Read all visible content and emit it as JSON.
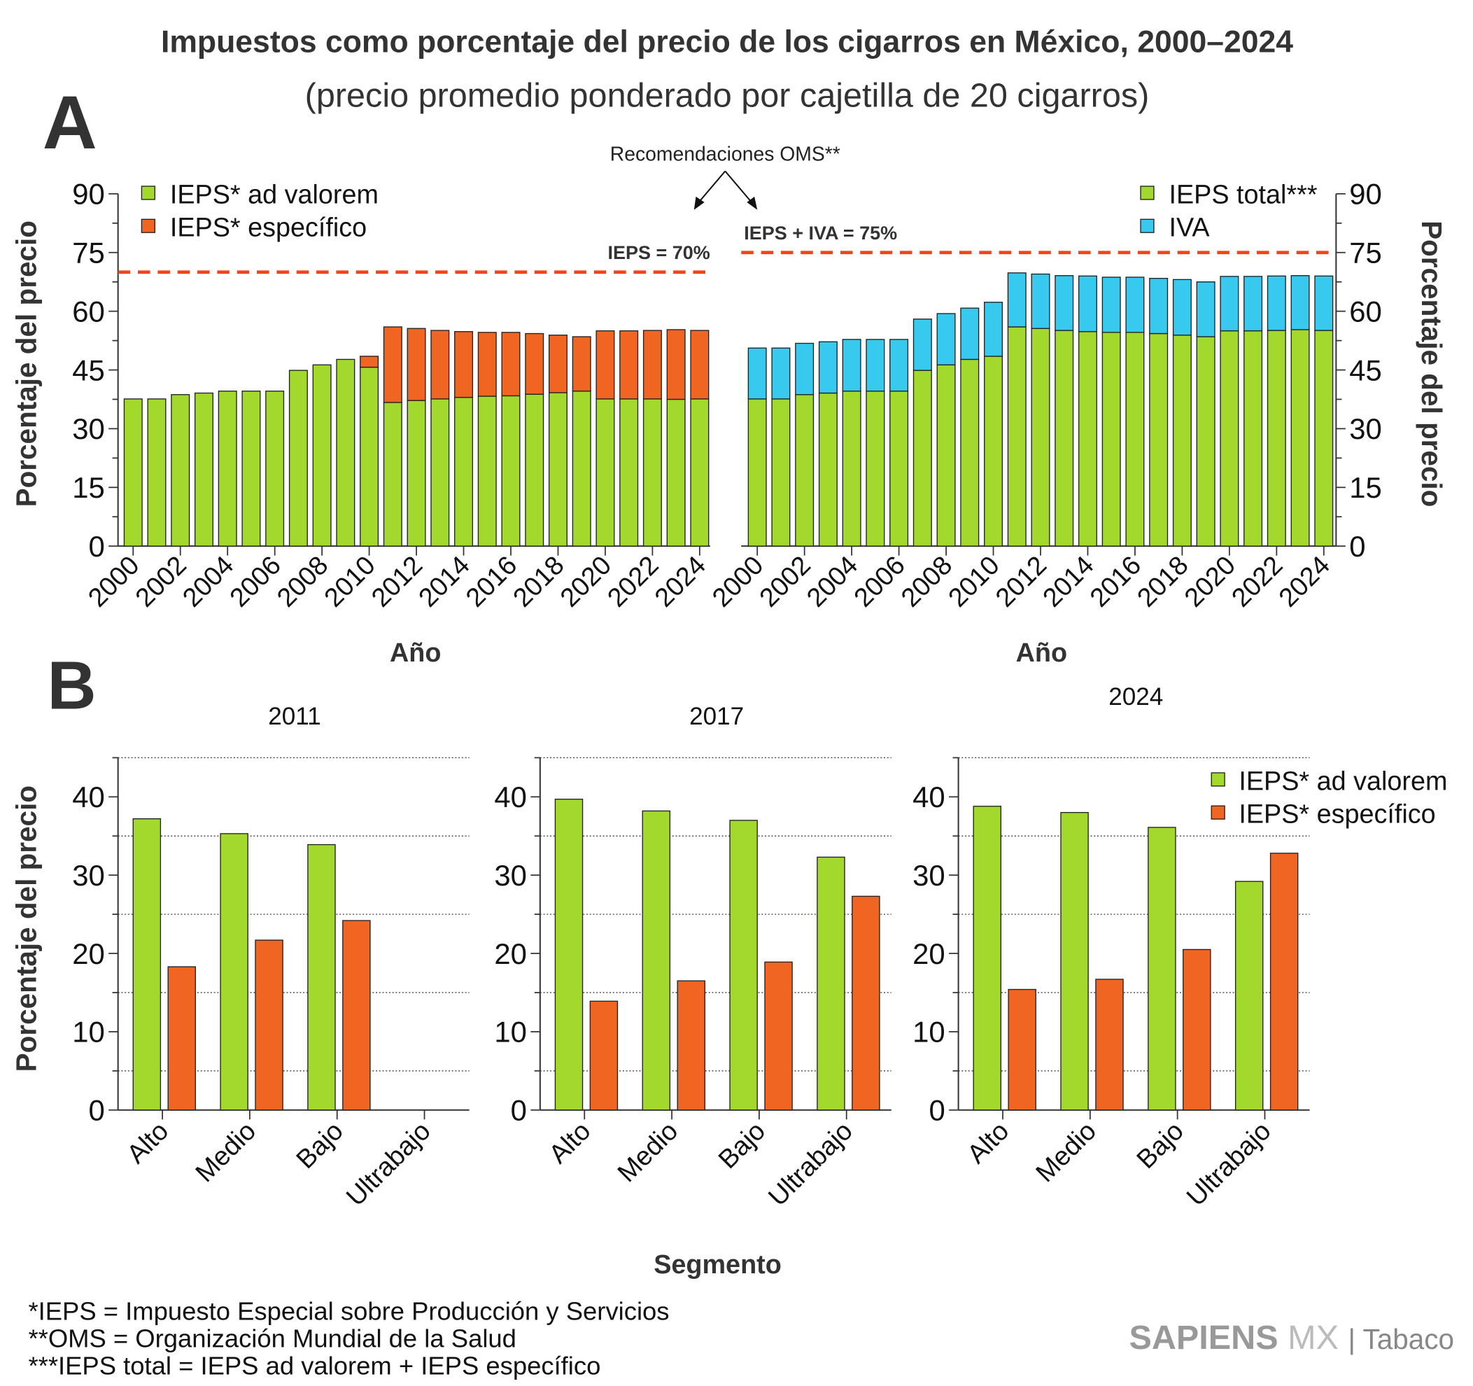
{
  "title": "Impuestos como porcentaje del precio de los cigarros en México, 2000–2024",
  "subtitle": "(precio promedio ponderado por cajetilla de 20 cigarros)",
  "panel_a_label": "A",
  "panel_b_label": "B",
  "annotation": "Recomendaciones OMS**",
  "footnotes": [
    "*IEPS = Impuesto Especial sobre Producción y Servicios",
    "**OMS = Organización Mundial de la Salud",
    "***IEPS total = IEPS ad valorem + IEPS específico"
  ],
  "logo": {
    "brand": "SAPIENS",
    "mx": "MX",
    "section": "| Tabaco"
  },
  "colors": {
    "green": "#a3d82c",
    "orange": "#f06522",
    "blue": "#38c9ef",
    "dash": "#f0441c"
  },
  "chart_data": [
    {
      "type": "bar",
      "stacked": true,
      "ylabel": "Porcentaje del precio",
      "xlabel": "Año",
      "ylim": [
        0,
        90
      ],
      "yticks": [
        0,
        15,
        30,
        45,
        60,
        75,
        90
      ],
      "reference_line": {
        "value": 70,
        "label": "IEPS = 70%"
      },
      "legend": "top-left",
      "categories": [
        2000,
        2001,
        2002,
        2003,
        2004,
        2005,
        2006,
        2007,
        2008,
        2009,
        2010,
        2011,
        2012,
        2013,
        2014,
        2015,
        2016,
        2017,
        2018,
        2019,
        2020,
        2021,
        2022,
        2023,
        2024
      ],
      "series": [
        {
          "name": "IEPS* ad valorem",
          "color": "#a3d82c",
          "values": [
            37.6,
            37.6,
            38.7,
            39.1,
            39.6,
            39.6,
            39.6,
            44.9,
            46.3,
            47.7,
            45.7,
            36.7,
            37.2,
            37.6,
            38.0,
            38.3,
            38.4,
            38.8,
            39.2,
            39.6,
            37.6,
            37.6,
            37.6,
            37.5,
            37.6
          ]
        },
        {
          "name": "IEPS* específico",
          "color": "#f06522",
          "values": [
            0,
            0,
            0,
            0,
            0,
            0,
            0,
            0,
            0,
            0,
            2.8,
            19.3,
            18.4,
            17.5,
            16.8,
            16.3,
            16.2,
            15.5,
            14.7,
            13.9,
            17.4,
            17.4,
            17.5,
            17.8,
            17.5
          ]
        }
      ]
    },
    {
      "type": "bar",
      "stacked": true,
      "ylabel": "Porcentaje del precio",
      "xlabel": "Año",
      "ylim": [
        0,
        90
      ],
      "yticks": [
        0,
        15,
        30,
        45,
        60,
        75,
        90
      ],
      "reference_line": {
        "value": 75,
        "label": "IEPS + IVA  = 75%"
      },
      "legend": "top-right",
      "categories": [
        2000,
        2001,
        2002,
        2003,
        2004,
        2005,
        2006,
        2007,
        2008,
        2009,
        2010,
        2011,
        2012,
        2013,
        2014,
        2015,
        2016,
        2017,
        2018,
        2019,
        2020,
        2021,
        2022,
        2023,
        2024
      ],
      "series": [
        {
          "name": "IEPS total***",
          "color": "#a3d82c",
          "values": [
            37.6,
            37.6,
            38.7,
            39.1,
            39.6,
            39.6,
            39.6,
            44.9,
            46.3,
            47.7,
            48.5,
            56.0,
            55.6,
            55.1,
            54.8,
            54.6,
            54.6,
            54.3,
            53.9,
            53.5,
            55.0,
            55.0,
            55.1,
            55.3,
            55.1
          ]
        },
        {
          "name": "IVA",
          "color": "#38c9ef",
          "values": [
            13.0,
            13.0,
            13.1,
            13.1,
            13.2,
            13.2,
            13.2,
            13.1,
            13.1,
            13.1,
            13.8,
            13.8,
            13.9,
            14.0,
            14.2,
            14.1,
            14.1,
            14.1,
            14.2,
            14.0,
            13.9,
            13.9,
            13.9,
            13.8,
            13.9
          ]
        }
      ]
    },
    {
      "type": "bar",
      "title": "2011",
      "ylabel": "Porcentaje del precio",
      "xlabel": "Segmento",
      "ylim": [
        0,
        45
      ],
      "yticks": [
        0,
        10,
        20,
        30,
        40
      ],
      "grid": "dotted",
      "categories": [
        "Alto",
        "Medio",
        "Bajo",
        "Ultrabajo"
      ],
      "series": [
        {
          "name": "IEPS* ad valorem",
          "color": "#a3d82c",
          "values": [
            37.2,
            35.3,
            33.9,
            0
          ]
        },
        {
          "name": "IEPS* específico",
          "color": "#f06522",
          "values": [
            18.3,
            21.7,
            24.2,
            0
          ]
        }
      ]
    },
    {
      "type": "bar",
      "title": "2017",
      "ylim": [
        0,
        45
      ],
      "yticks": [
        0,
        10,
        20,
        30,
        40
      ],
      "grid": "dotted",
      "categories": [
        "Alto",
        "Medio",
        "Bajo",
        "Ultrabajo"
      ],
      "series": [
        {
          "name": "IEPS* ad valorem",
          "color": "#a3d82c",
          "values": [
            39.7,
            38.2,
            37.0,
            32.3
          ]
        },
        {
          "name": "IEPS* específico",
          "color": "#f06522",
          "values": [
            13.9,
            16.5,
            18.9,
            27.3
          ]
        }
      ]
    },
    {
      "type": "bar",
      "title": "2024",
      "ylim": [
        0,
        45
      ],
      "yticks": [
        0,
        10,
        20,
        30,
        40
      ],
      "grid": "dotted",
      "legend": "top-right",
      "categories": [
        "Alto",
        "Medio",
        "Bajo",
        "Ultrabajo"
      ],
      "series": [
        {
          "name": "IEPS* ad valorem",
          "color": "#a3d82c",
          "values": [
            38.8,
            38.0,
            36.1,
            29.2
          ]
        },
        {
          "name": "IEPS* específico",
          "color": "#f06522",
          "values": [
            15.4,
            16.7,
            20.5,
            32.8
          ]
        }
      ]
    }
  ]
}
